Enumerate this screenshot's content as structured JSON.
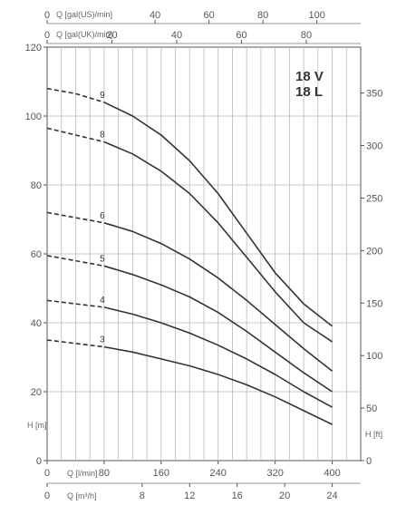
{
  "chart_data": {
    "type": "line",
    "model": [
      "18 V",
      "18 L"
    ],
    "axes": {
      "y_left": {
        "label": "H [m]",
        "min": 0,
        "max": 120,
        "ticks": [
          0,
          20,
          40,
          60,
          80,
          100,
          120
        ]
      },
      "y_right": {
        "label": "H [ft]",
        "ticks": [
          0,
          50,
          100,
          150,
          200,
          250,
          300,
          350
        ]
      },
      "x_lpm": {
        "label": "Q [l/min]",
        "min": 0,
        "max": 440,
        "ticks": [
          0,
          80,
          160,
          240,
          320,
          400
        ]
      },
      "x_m3h": {
        "label": "Q [m³/h]",
        "ticks": [
          0,
          8,
          12,
          16,
          20,
          24
        ]
      },
      "x_usgpm": {
        "label": "Q [gal(US)/min]",
        "ticks": [
          0,
          40,
          60,
          80,
          100
        ]
      },
      "x_ukgpm": {
        "label": "Q [gal(UK)/min]",
        "ticks": [
          0,
          20,
          40,
          60,
          80
        ]
      }
    },
    "dashed_to_lpm": 80,
    "series": [
      {
        "name": "3",
        "points": [
          [
            0,
            35
          ],
          [
            40,
            34
          ],
          [
            80,
            33
          ],
          [
            120,
            31.5
          ],
          [
            160,
            29.5
          ],
          [
            200,
            27.5
          ],
          [
            240,
            25
          ],
          [
            280,
            22
          ],
          [
            320,
            18.5
          ],
          [
            360,
            14.5
          ],
          [
            400,
            10.5
          ]
        ]
      },
      {
        "name": "4",
        "points": [
          [
            0,
            46.5
          ],
          [
            40,
            45.5
          ],
          [
            80,
            44.5
          ],
          [
            120,
            42.5
          ],
          [
            160,
            40
          ],
          [
            200,
            37
          ],
          [
            240,
            33.5
          ],
          [
            280,
            29.5
          ],
          [
            320,
            25
          ],
          [
            360,
            20
          ],
          [
            400,
            15.5
          ]
        ]
      },
      {
        "name": "5",
        "points": [
          [
            0,
            59.5
          ],
          [
            40,
            58
          ],
          [
            80,
            56.5
          ],
          [
            120,
            54
          ],
          [
            160,
            51
          ],
          [
            200,
            47.5
          ],
          [
            240,
            43
          ],
          [
            280,
            37.5
          ],
          [
            320,
            31.5
          ],
          [
            360,
            25.5
          ],
          [
            400,
            20
          ]
        ]
      },
      {
        "name": "6",
        "points": [
          [
            0,
            72
          ],
          [
            40,
            70.5
          ],
          [
            80,
            69
          ],
          [
            120,
            66.5
          ],
          [
            160,
            63
          ],
          [
            200,
            58.5
          ],
          [
            240,
            53
          ],
          [
            280,
            46.5
          ],
          [
            320,
            39.5
          ],
          [
            360,
            32.5
          ],
          [
            400,
            26
          ]
        ]
      },
      {
        "name": "8",
        "points": [
          [
            0,
            96.5
          ],
          [
            40,
            94.5
          ],
          [
            80,
            92.5
          ],
          [
            120,
            89
          ],
          [
            160,
            84
          ],
          [
            200,
            77.5
          ],
          [
            240,
            69
          ],
          [
            280,
            59
          ],
          [
            320,
            49
          ],
          [
            360,
            40
          ],
          [
            400,
            34.5
          ]
        ]
      },
      {
        "name": "9",
        "points": [
          [
            0,
            108
          ],
          [
            40,
            106.5
          ],
          [
            80,
            104
          ],
          [
            120,
            100
          ],
          [
            160,
            94.5
          ],
          [
            200,
            87
          ],
          [
            240,
            77.5
          ],
          [
            280,
            66
          ],
          [
            320,
            54.5
          ],
          [
            360,
            45.5
          ],
          [
            400,
            39
          ]
        ]
      }
    ]
  }
}
